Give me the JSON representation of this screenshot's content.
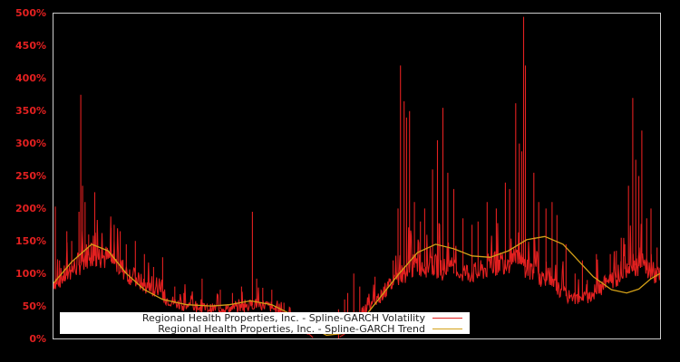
{
  "chart_data": {
    "type": "line",
    "title": "",
    "xlabel": "",
    "ylabel": "",
    "ylim": [
      0,
      500
    ],
    "y_ticks": [
      "0%",
      "50%",
      "100%",
      "150%",
      "200%",
      "250%",
      "300%",
      "350%",
      "400%",
      "450%",
      "500%"
    ],
    "grid": false,
    "legend_position": "lower center",
    "x_axis": {
      "ticks": [],
      "note": "no x tick labels shown; x is relative time position 0-1"
    },
    "series": [
      {
        "name": "Regional Health Properties, Inc. - Spline-GARCH Volatility",
        "color": "#e32020",
        "baseline_points": [
          [
            0.0,
            85
          ],
          [
            0.02,
            95
          ],
          [
            0.045,
            115
          ],
          [
            0.06,
            130
          ],
          [
            0.075,
            125
          ],
          [
            0.095,
            118
          ],
          [
            0.12,
            100
          ],
          [
            0.15,
            80
          ],
          [
            0.18,
            62
          ],
          [
            0.21,
            50
          ],
          [
            0.25,
            45
          ],
          [
            0.29,
            45
          ],
          [
            0.32,
            48
          ],
          [
            0.33,
            52
          ],
          [
            0.35,
            50
          ],
          [
            0.38,
            38
          ],
          [
            0.4,
            20
          ],
          [
            0.43,
            0
          ],
          [
            0.47,
            0
          ],
          [
            0.5,
            25
          ],
          [
            0.53,
            55
          ],
          [
            0.56,
            85
          ],
          [
            0.58,
            100
          ],
          [
            0.6,
            112
          ],
          [
            0.63,
            108
          ],
          [
            0.66,
            100
          ],
          [
            0.7,
            98
          ],
          [
            0.72,
            110
          ],
          [
            0.75,
            118
          ],
          [
            0.77,
            115
          ],
          [
            0.8,
            95
          ],
          [
            0.83,
            75
          ],
          [
            0.85,
            62
          ],
          [
            0.87,
            58
          ],
          [
            0.89,
            68
          ],
          [
            0.91,
            82
          ],
          [
            0.93,
            95
          ],
          [
            0.95,
            115
          ],
          [
            0.97,
            110
          ],
          [
            0.99,
            98
          ],
          [
            1.0,
            92
          ]
        ],
        "spikes": [
          [
            0.003,
            203
          ],
          [
            0.01,
            120
          ],
          [
            0.022,
            165
          ],
          [
            0.03,
            150
          ],
          [
            0.042,
            195
          ],
          [
            0.045,
            375
          ],
          [
            0.048,
            235
          ],
          [
            0.052,
            210
          ],
          [
            0.058,
            160
          ],
          [
            0.068,
            225
          ],
          [
            0.08,
            140
          ],
          [
            0.095,
            170
          ],
          [
            0.1,
            175
          ],
          [
            0.11,
            165
          ],
          [
            0.12,
            145
          ],
          [
            0.135,
            150
          ],
          [
            0.15,
            130
          ],
          [
            0.165,
            110
          ],
          [
            0.18,
            125
          ],
          [
            0.2,
            80
          ],
          [
            0.215,
            70
          ],
          [
            0.245,
            92
          ],
          [
            0.275,
            75
          ],
          [
            0.295,
            70
          ],
          [
            0.31,
            80
          ],
          [
            0.328,
            195
          ],
          [
            0.335,
            92
          ],
          [
            0.345,
            78
          ],
          [
            0.36,
            75
          ],
          [
            0.38,
            55
          ],
          [
            0.47,
            45
          ],
          [
            0.48,
            60
          ],
          [
            0.485,
            70
          ],
          [
            0.495,
            100
          ],
          [
            0.505,
            80
          ],
          [
            0.53,
            95
          ],
          [
            0.56,
            120
          ],
          [
            0.568,
            200
          ],
          [
            0.572,
            420
          ],
          [
            0.578,
            365
          ],
          [
            0.582,
            340
          ],
          [
            0.587,
            350
          ],
          [
            0.595,
            210
          ],
          [
            0.605,
            180
          ],
          [
            0.612,
            200
          ],
          [
            0.625,
            260
          ],
          [
            0.633,
            305
          ],
          [
            0.642,
            355
          ],
          [
            0.65,
            255
          ],
          [
            0.66,
            230
          ],
          [
            0.675,
            185
          ],
          [
            0.69,
            175
          ],
          [
            0.7,
            180
          ],
          [
            0.715,
            210
          ],
          [
            0.73,
            200
          ],
          [
            0.745,
            240
          ],
          [
            0.752,
            230
          ],
          [
            0.762,
            362
          ],
          [
            0.768,
            300
          ],
          [
            0.772,
            288
          ],
          [
            0.775,
            495
          ],
          [
            0.778,
            420
          ],
          [
            0.792,
            255
          ],
          [
            0.8,
            210
          ],
          [
            0.812,
            200
          ],
          [
            0.822,
            210
          ],
          [
            0.83,
            190
          ],
          [
            0.845,
            145
          ],
          [
            0.86,
            100
          ],
          [
            0.872,
            120
          ],
          [
            0.88,
            90
          ],
          [
            0.895,
            130
          ],
          [
            0.918,
            130
          ],
          [
            0.928,
            135
          ],
          [
            0.936,
            155
          ],
          [
            0.942,
            145
          ],
          [
            0.948,
            235
          ],
          [
            0.955,
            370
          ],
          [
            0.96,
            275
          ],
          [
            0.965,
            250
          ],
          [
            0.97,
            320
          ],
          [
            0.978,
            185
          ],
          [
            0.985,
            200
          ],
          [
            0.995,
            140
          ]
        ]
      },
      {
        "name": "Regional Health Properties, Inc. - Spline-GARCH Trend",
        "color": "#d4a017",
        "points": [
          [
            0.0,
            85
          ],
          [
            0.03,
            118
          ],
          [
            0.063,
            145
          ],
          [
            0.09,
            135
          ],
          [
            0.12,
            100
          ],
          [
            0.15,
            75
          ],
          [
            0.18,
            60
          ],
          [
            0.22,
            52
          ],
          [
            0.26,
            50
          ],
          [
            0.29,
            52
          ],
          [
            0.325,
            58
          ],
          [
            0.36,
            52
          ],
          [
            0.39,
            38
          ],
          [
            0.42,
            20
          ],
          [
            0.45,
            5
          ],
          [
            0.48,
            8
          ],
          [
            0.51,
            30
          ],
          [
            0.54,
            65
          ],
          [
            0.57,
            100
          ],
          [
            0.6,
            132
          ],
          [
            0.63,
            145
          ],
          [
            0.66,
            138
          ],
          [
            0.69,
            127
          ],
          [
            0.72,
            125
          ],
          [
            0.75,
            135
          ],
          [
            0.78,
            152
          ],
          [
            0.81,
            157
          ],
          [
            0.84,
            145
          ],
          [
            0.865,
            120
          ],
          [
            0.89,
            95
          ],
          [
            0.92,
            75
          ],
          [
            0.945,
            70
          ],
          [
            0.965,
            76
          ],
          [
            0.985,
            92
          ],
          [
            1.0,
            100
          ]
        ]
      }
    ]
  },
  "y_axis": {
    "labels": [
      "500%",
      "450%",
      "400%",
      "350%",
      "300%",
      "250%",
      "200%",
      "150%",
      "100%",
      "50%",
      "0%"
    ]
  },
  "legend": {
    "items": [
      {
        "label": "Regional Health Properties, Inc. - Spline-GARCH Volatility",
        "color": "#e32020"
      },
      {
        "label": "Regional Health Properties, Inc. - Spline-GARCH Trend",
        "color": "#d4a017"
      }
    ]
  },
  "colors": {
    "background": "#000000",
    "axis_frame": "#cccccc",
    "tick_label": "#e32020",
    "legend_bg": "#ffffff",
    "legend_text": "#222222"
  }
}
